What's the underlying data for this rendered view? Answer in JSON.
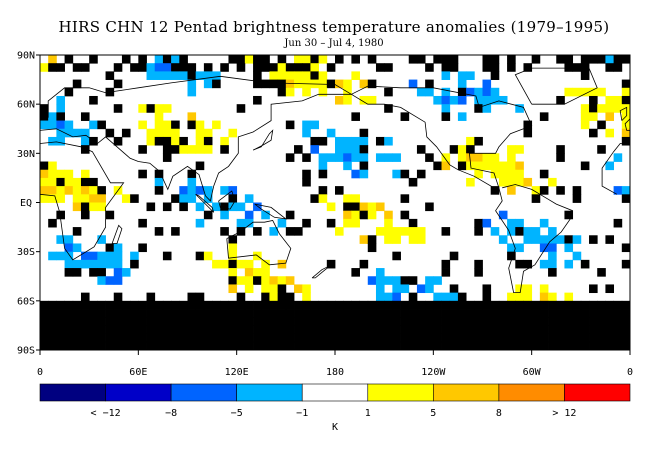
{
  "title": "HIRS CHN 12 Pentad brightness temperature anomalies (1979–1995)",
  "subtitle": "Jun 30 – Jul 4, 1980",
  "map": {
    "lat_labels": [
      "90N",
      "60N",
      "30N",
      "EQ",
      "30S",
      "60S",
      "90S"
    ],
    "lon_labels": [
      "0",
      "60E",
      "120E",
      "180",
      "120W",
      "60W",
      "0"
    ],
    "missing_color": "#000000",
    "coast_color": "#000000"
  },
  "legend": {
    "unit": "K",
    "colors": [
      "#000080",
      "#0000c8",
      "#0064ff",
      "#00b4ff",
      "#ffffff",
      "#ffff00",
      "#ffc800",
      "#ff8c00",
      "#ff0000"
    ],
    "tick_labels": [
      "< −12",
      "−8",
      "−5",
      "−1",
      "1",
      "5",
      "8",
      "> 12"
    ]
  }
}
